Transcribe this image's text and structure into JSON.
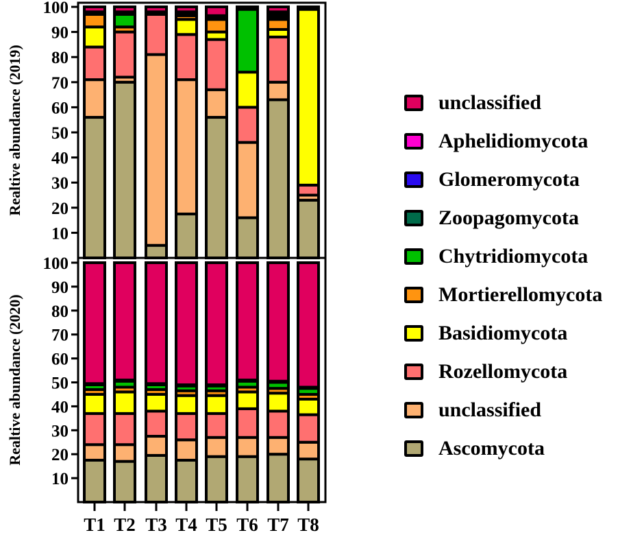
{
  "chart_data": {
    "type": "bar",
    "stacked": true,
    "categories": [
      "T1",
      "T2",
      "T3",
      "T4",
      "T5",
      "T6",
      "T7",
      "T8"
    ],
    "legend_position": "right",
    "legend": [
      {
        "name": "unclassified",
        "color": "#E0005E"
      },
      {
        "name": "Aphelidiomycota",
        "color": "#FF00D0"
      },
      {
        "name": "Glomeromycota",
        "color": "#2A0BF0"
      },
      {
        "name": "Zoopagomycota",
        "color": "#006B4A"
      },
      {
        "name": "Chytridiomycota",
        "color": "#00C000"
      },
      {
        "name": "Mortierellomycota",
        "color": "#FF9410"
      },
      {
        "name": "Basidiomycota",
        "color": "#FFFF00"
      },
      {
        "name": "Rozellomycota",
        "color": "#FF7070"
      },
      {
        "name": "unclassified",
        "color": "#FDB171"
      },
      {
        "name": "Ascomycota",
        "color": "#B1A873"
      }
    ],
    "series_order_bottom_to_top": [
      "Ascomycota",
      "unclassified (phylum)",
      "Rozellomycota",
      "Basidiomycota",
      "Mortierellomycota",
      "Chytridiomycota",
      "Zoopagomycota",
      "Glomeromycota",
      "Aphelidiomycota",
      "unclassified"
    ],
    "panels": [
      {
        "ylabel": "Realtive abundance (2019)",
        "ylim": [
          0,
          100
        ],
        "yticks": [
          10,
          20,
          30,
          40,
          50,
          60,
          70,
          80,
          90,
          100
        ],
        "series": [
          {
            "name": "Ascomycota",
            "color": "#B1A873",
            "values": [
              56,
              70,
              5,
              17.5,
              56,
              16,
              63,
              23
            ]
          },
          {
            "name": "unclassified (phylum)",
            "color": "#FDB171",
            "values": [
              15,
              2,
              76,
              53.5,
              11,
              30,
              7,
              2
            ]
          },
          {
            "name": "Rozellomycota",
            "color": "#FF7070",
            "values": [
              13,
              18,
              16,
              18,
              20,
              14,
              18,
              4
            ]
          },
          {
            "name": "Basidiomycota",
            "color": "#FFFF00",
            "values": [
              8,
              0,
              1,
              6,
              3,
              14,
              3,
              70
            ]
          },
          {
            "name": "Mortierellomycota",
            "color": "#FF9410",
            "values": [
              5,
              2,
              0,
              1.5,
              5,
              0,
              4,
              0
            ]
          },
          {
            "name": "Chytridiomycota",
            "color": "#00C000",
            "values": [
              0,
              5,
              0,
              1,
              1,
              25,
              1,
              0
            ]
          },
          {
            "name": "Zoopagomycota",
            "color": "#006B4A",
            "values": [
              1,
              1,
              0,
              0.5,
              0.5,
              0,
              1,
              0
            ]
          },
          {
            "name": "Glomeromycota",
            "color": "#2A0BF0",
            "values": [
              0,
              0,
              0,
              0,
              0,
              0,
              1,
              0
            ]
          },
          {
            "name": "Aphelidiomycota",
            "color": "#FF00D0",
            "values": [
              0,
              0,
              0,
              0,
              0,
              0,
              0,
              0
            ]
          },
          {
            "name": "unclassified",
            "color": "#E0005E",
            "values": [
              2,
              2,
              2,
              2,
              3.5,
              1,
              2,
              1
            ]
          }
        ]
      },
      {
        "ylabel": "Realtive abundance (2020)",
        "ylim": [
          0,
          100
        ],
        "yticks": [
          10,
          20,
          30,
          40,
          50,
          60,
          70,
          80,
          90,
          100
        ],
        "series": [
          {
            "name": "Ascomycota",
            "color": "#B1A873",
            "values": [
              17.5,
              17,
              19.5,
              17.5,
              19,
              19,
              20,
              18
            ]
          },
          {
            "name": "unclassified (phylum)",
            "color": "#FDB171",
            "values": [
              6.5,
              7,
              8,
              8.5,
              8,
              8,
              7,
              7
            ]
          },
          {
            "name": "Rozellomycota",
            "color": "#FF7070",
            "values": [
              13,
              13,
              10.5,
              11,
              10,
              12,
              11,
              11.5
            ]
          },
          {
            "name": "Basidiomycota",
            "color": "#FFFF00",
            "values": [
              8,
              9,
              7,
              7.5,
              7.5,
              7,
              7.5,
              6.5
            ]
          },
          {
            "name": "Mortierellomycota",
            "color": "#FF9410",
            "values": [
              2,
              2,
              2,
              2,
              2,
              2,
              2,
              2
            ]
          },
          {
            "name": "Chytridiomycota",
            "color": "#00C000",
            "values": [
              2,
              2.5,
              2,
              2,
              2,
              2.5,
              2.5,
              2.5
            ]
          },
          {
            "name": "Zoopagomycota",
            "color": "#006B4A",
            "values": [
              0.5,
              0.5,
              0.5,
              0.5,
              0.5,
              0.5,
              0.5,
              0.5
            ]
          },
          {
            "name": "Glomeromycota",
            "color": "#2A0BF0",
            "values": [
              0,
              0,
              0,
              0,
              0,
              0,
              0,
              0
            ]
          },
          {
            "name": "Aphelidiomycota",
            "color": "#FF00D0",
            "values": [
              0,
              0,
              0,
              0,
              0,
              0,
              0,
              0
            ]
          },
          {
            "name": "unclassified",
            "color": "#E0005E",
            "values": [
              50.5,
              49,
              50.5,
              51,
              51,
              49,
              49.5,
              52
            ]
          }
        ]
      }
    ]
  }
}
